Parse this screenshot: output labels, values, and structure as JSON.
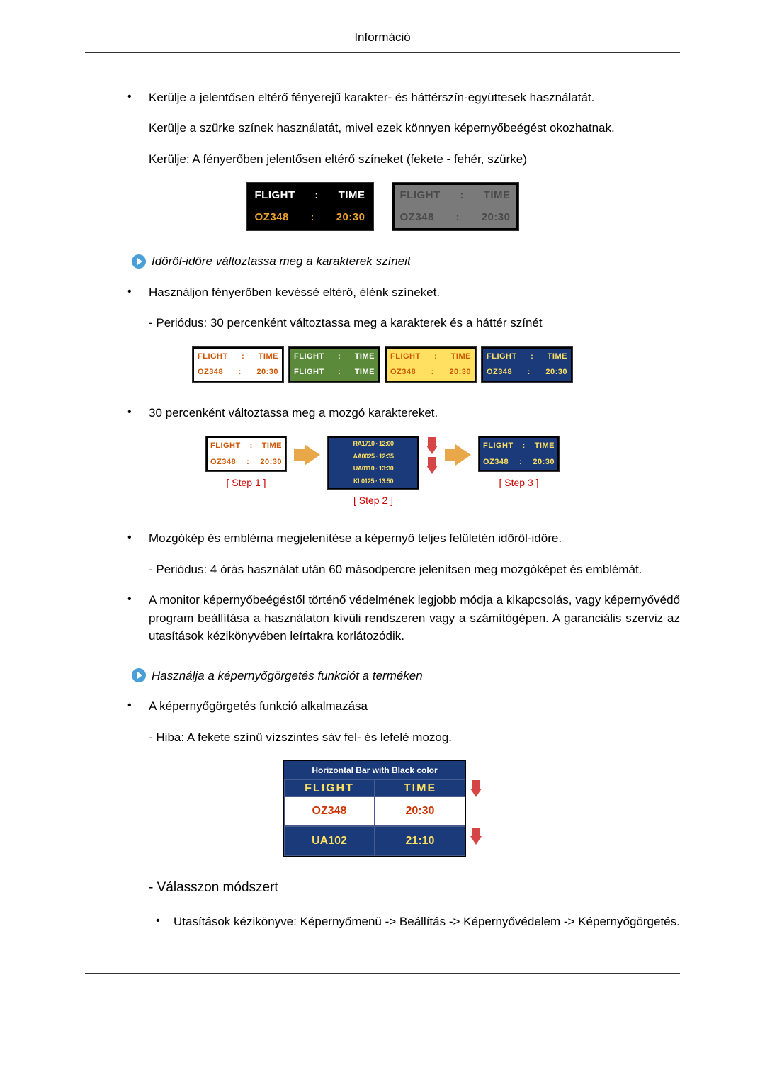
{
  "header": {
    "title": "Információ"
  },
  "bullets": {
    "avoid_brightness": "Kerülje a jelentősen eltérő fényerejű karakter- és háttérszín-együttesek használatát.",
    "avoid_gray": "Kerülje a szürke színek használatát, mivel ezek könnyen képernyőbeégést okozhatnak.",
    "avoid_colors": "Kerülje: A fényerőben jelentősen eltérő színeket (fekete - fehér, szürke)",
    "heading_change_colors": "Időről-időre változtassa meg a karakterek színeit",
    "use_vivid": "Használjon fényerőben kevéssé eltérő, élénk színeket.",
    "period_30": "- Periódus: 30 percenként változtassa meg a karakterek és a háttér színét",
    "change_moving": "30 percenként változtassa meg a mozgó karaktereket.",
    "moving_pic": "Mozgókép és embléma megjelenítése a képernyő teljes felületén időről-időre.",
    "period_4h": "- Periódus: 4 órás használat után 60 másodpercre jelenítsen meg mozgóképet és emblémát.",
    "best_way": "A monitor képernyőbeégéstől történő védelmének legjobb módja a kikapcsolás, vagy képernyővédő program beállítása a használaton kívüli rendszeren vagy a számítógépen. A garanciális szerviz az utasítások kézikönyvében leírtakra korlátozódik.",
    "heading_scroll": "Használja a képernyőgörgetés funkciót a terméken",
    "scroll_apply": "A képernyőgörgetés funkció alkalmazása",
    "scroll_hiba": "- Hiba: A fekete színű vízszintes sáv fel- és lefelé mozog.",
    "select_method": "- Válasszon módszert",
    "manual_path": "Utasítások kézikönyve: Képernyőmenü -> Beállítás -> Képernyővédelem -> Képernyőgörgetés."
  },
  "flight_panels": {
    "p1": {
      "r1": {
        "bg": "#000000",
        "c0": "#ffffff",
        "t0": "FLIGHT",
        "t1": ":",
        "t2": "TIME"
      },
      "r2": {
        "bg": "#000000",
        "c0": "#e8a030",
        "t0": "OZ348",
        "t1": ":",
        "t2": "20:30"
      }
    },
    "p2": {
      "r1": {
        "bg": "#7a7a7a",
        "c0": "#4a4a4a",
        "t0": "FLIGHT",
        "t1": ":",
        "t2": "TIME"
      },
      "r2": {
        "bg": "#7a7a7a",
        "c0": "#4a4a4a",
        "t0": "OZ348",
        "t1": ":",
        "t2": "20:30"
      }
    }
  },
  "color_cycle": [
    {
      "r1_bg": "#ffffff",
      "r1_fg": "#cc5500",
      "r2_bg": "#ffffff",
      "r2_fg": "#cc5500",
      "r2_label": "OZ348",
      "r2_val": "20:30"
    },
    {
      "r1_bg": "#5a8a3a",
      "r1_fg": "#ffffff",
      "r2_bg": "#5a8a3a",
      "r2_fg": "#ffffff",
      "r2_label": "FLIGHT",
      "r2_val": "TIME",
      "alt": true
    },
    {
      "r1_bg": "#ffe060",
      "r1_fg": "#cc5500",
      "r2_bg": "#ffe060",
      "r2_fg": "#cc5500",
      "r2_label": "OZ348",
      "r2_val": "20:30"
    },
    {
      "r1_bg": "#1a3a7a",
      "r1_fg": "#ffe060",
      "r2_bg": "#1a3a7a",
      "r2_fg": "#ffe060",
      "r2_label": "OZ348",
      "r2_val": "20:30"
    }
  ],
  "flight_label": {
    "l": "FLIGHT",
    "c": ":",
    "r": "TIME"
  },
  "steps": {
    "step1": "[ Step 1 ]",
    "step2": "[ Step 2 ]",
    "step3": "[ Step 3 ]",
    "panel1": {
      "r1_bg": "#ffffff",
      "r1_fg": "#cc5500",
      "r2_bg": "#ffffff",
      "r2_fg": "#cc5500",
      "r2_l": "OZ348",
      "r2_v": "20:30"
    },
    "panel2": {
      "bg": "#1a3a7a",
      "fg": "#ffe060",
      "l1": "RA1710 · 12:00",
      "l2": "AA0025 · 12:35",
      "l3": "UA0110 · 13:30",
      "l4": "KL0125 · 13:50"
    },
    "panel3": {
      "r1_bg": "#1a3a7a",
      "r1_fg": "#ffe060",
      "r2_bg": "#1a3a7a",
      "r2_fg": "#ffe060",
      "r2_l": "OZ348",
      "r2_v": "20:30"
    }
  },
  "hbar": {
    "title": "Horizontal Bar with Black color",
    "rows": [
      {
        "l": "FLIGHT",
        "r": "TIME",
        "bg": "#1a3a7a",
        "fg": "#ffe060",
        "cropped": true
      },
      {
        "l": "OZ348",
        "r": "20:30",
        "bg": "#ffffff",
        "fg": "#cc3300"
      },
      {
        "l": "UA102",
        "r": "21:10",
        "bg": "#1a3a7a",
        "fg": "#ffe060"
      }
    ]
  }
}
